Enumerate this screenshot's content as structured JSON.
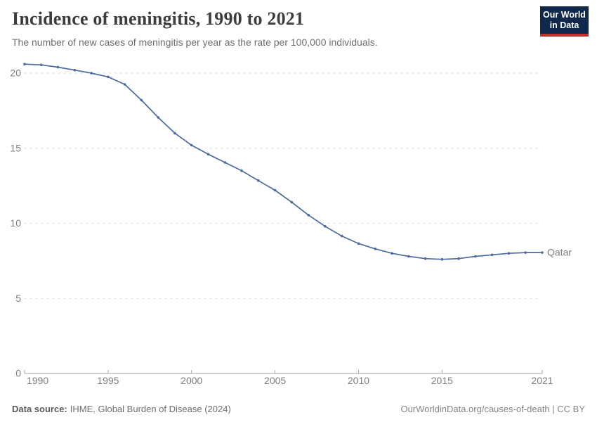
{
  "header": {
    "title": "Incidence of meningitis, 1990 to 2021",
    "subtitle": "The number of new cases of meningitis per year as the rate per 100,000 individuals.",
    "logo": {
      "line1": "Our World",
      "line2": "in Data",
      "bg_color": "#10284c",
      "accent_color": "#bc352d"
    }
  },
  "chart_data": {
    "type": "line",
    "title": "Incidence of meningitis, 1990 to 2021",
    "xlabel": "",
    "ylabel": "",
    "x_range": [
      1990,
      2021
    ],
    "ylim": [
      0,
      21
    ],
    "grid": "horizontal-dashed",
    "legend_position": "entity-label-right-of-line",
    "x_ticks": [
      1990,
      1995,
      2000,
      2005,
      2010,
      2015,
      2021
    ],
    "y_ticks": [
      0,
      5,
      10,
      15,
      20
    ],
    "series": [
      {
        "name": "Qatar",
        "color": "#4c6a9e",
        "x": [
          1990,
          1991,
          1992,
          1993,
          1994,
          1995,
          1996,
          1997,
          1998,
          1999,
          2000,
          2001,
          2002,
          2003,
          2004,
          2005,
          2006,
          2007,
          2008,
          2009,
          2010,
          2011,
          2012,
          2013,
          2014,
          2015,
          2016,
          2017,
          2018,
          2019,
          2020,
          2021
        ],
        "values": [
          20.6,
          20.55,
          20.4,
          20.2,
          20.0,
          19.75,
          19.25,
          18.2,
          17.05,
          16.0,
          15.2,
          14.6,
          14.05,
          13.5,
          12.85,
          12.2,
          11.4,
          10.55,
          9.8,
          9.15,
          8.65,
          8.3,
          8.0,
          7.8,
          7.65,
          7.6,
          7.65,
          7.8,
          7.9,
          8.0,
          8.05,
          8.05
        ]
      }
    ]
  },
  "footer": {
    "source_label": "Data source:",
    "source_text": "IHME, Global Burden of Disease (2024)",
    "credit": "OurWorldinData.org/causes-of-death | CC BY"
  }
}
